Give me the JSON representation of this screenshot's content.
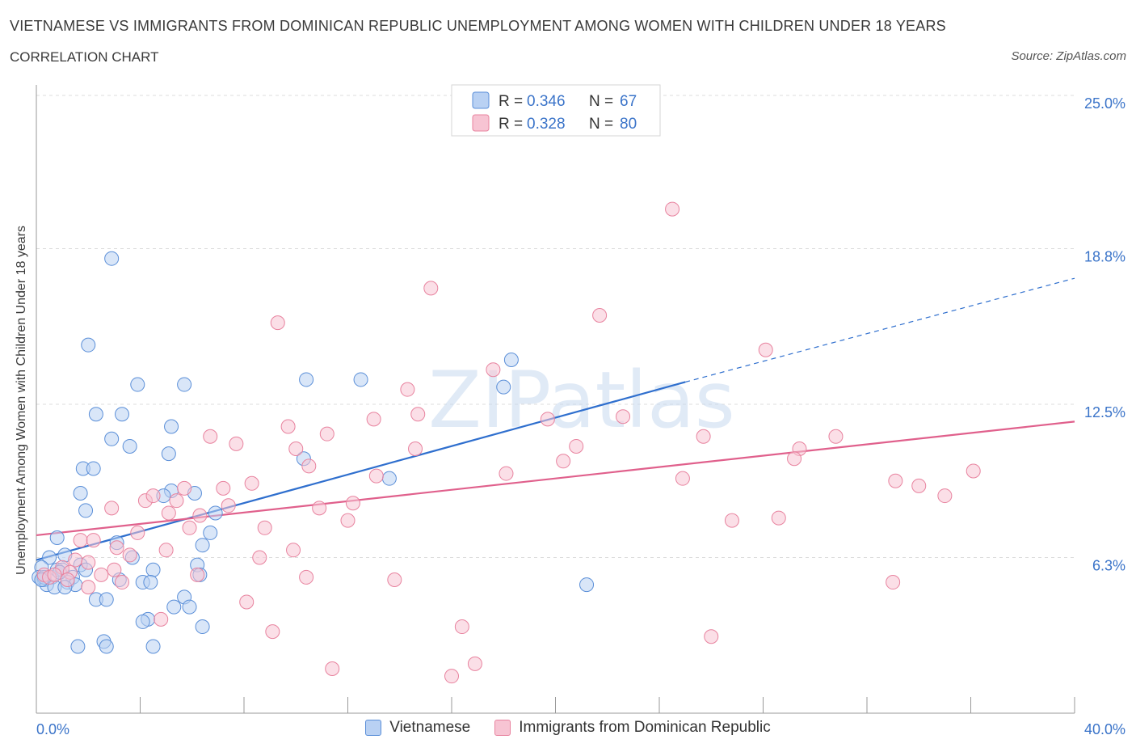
{
  "chart_data": {
    "type": "scatter",
    "title": "VIETNAMESE VS IMMIGRANTS FROM DOMINICAN REPUBLIC UNEMPLOYMENT AMONG WOMEN WITH CHILDREN UNDER 18 YEARS",
    "subtitle": "CORRELATION CHART",
    "source": "Source: ZipAtlas.com",
    "xlabel": "",
    "ylabel": "Unemployment Among Women with Children Under 18 years",
    "xlim": [
      0,
      40
    ],
    "ylim": [
      0,
      25
    ],
    "x_tick_labels": [
      "0.0%",
      "40.0%"
    ],
    "y_ticks": [
      {
        "value": 6.3,
        "label": "6.3%"
      },
      {
        "value": 12.5,
        "label": "12.5%"
      },
      {
        "value": 18.8,
        "label": "18.8%"
      },
      {
        "value": 25.0,
        "label": "25.0%"
      }
    ],
    "watermark": "ZIPatlas",
    "series": [
      {
        "name": "Vietnamese",
        "color": "#5b8fd8",
        "fill": "#b9d1f3",
        "line_color": "#2f6fce",
        "R": "0.346",
        "N": "67",
        "trend": {
          "x0": 0.0,
          "y0": 6.2,
          "x1": 25.0,
          "y1": 13.4,
          "dash_to_x": 40.0,
          "dash_to_y": 17.6
        },
        "points": [
          [
            2.9,
            18.4
          ],
          [
            2.0,
            14.9
          ],
          [
            18.3,
            14.3
          ],
          [
            3.9,
            13.3
          ],
          [
            5.7,
            13.3
          ],
          [
            10.4,
            13.5
          ],
          [
            12.5,
            13.5
          ],
          [
            18.0,
            13.2
          ],
          [
            2.3,
            12.1
          ],
          [
            3.3,
            12.1
          ],
          [
            5.2,
            11.6
          ],
          [
            2.9,
            11.1
          ],
          [
            3.6,
            10.8
          ],
          [
            5.1,
            10.5
          ],
          [
            10.3,
            10.3
          ],
          [
            1.8,
            9.9
          ],
          [
            2.2,
            9.9
          ],
          [
            13.6,
            9.5
          ],
          [
            1.7,
            8.9
          ],
          [
            5.2,
            9.0
          ],
          [
            6.1,
            8.9
          ],
          [
            4.9,
            8.8
          ],
          [
            1.9,
            8.2
          ],
          [
            6.9,
            8.1
          ],
          [
            0.8,
            7.1
          ],
          [
            6.7,
            7.3
          ],
          [
            3.1,
            6.9
          ],
          [
            6.4,
            6.8
          ],
          [
            0.5,
            6.3
          ],
          [
            1.1,
            6.4
          ],
          [
            3.7,
            6.3
          ],
          [
            1.7,
            6.0
          ],
          [
            6.2,
            6.0
          ],
          [
            0.2,
            5.9
          ],
          [
            0.3,
            5.4
          ],
          [
            0.6,
            5.5
          ],
          [
            1.4,
            5.5
          ],
          [
            1.2,
            5.3
          ],
          [
            0.8,
            5.8
          ],
          [
            1.0,
            5.8
          ],
          [
            1.9,
            5.8
          ],
          [
            4.5,
            5.8
          ],
          [
            6.3,
            5.6
          ],
          [
            0.1,
            5.5
          ],
          [
            0.4,
            5.2
          ],
          [
            0.7,
            5.1
          ],
          [
            1.5,
            5.2
          ],
          [
            1.1,
            5.1
          ],
          [
            3.2,
            5.4
          ],
          [
            4.1,
            5.3
          ],
          [
            4.4,
            5.3
          ],
          [
            2.3,
            4.6
          ],
          [
            2.7,
            4.6
          ],
          [
            5.7,
            4.7
          ],
          [
            5.3,
            4.3
          ],
          [
            5.9,
            4.3
          ],
          [
            4.3,
            3.8
          ],
          [
            4.1,
            3.7
          ],
          [
            6.4,
            3.5
          ],
          [
            2.6,
            2.9
          ],
          [
            2.7,
            2.7
          ],
          [
            1.6,
            2.7
          ],
          [
            4.5,
            2.7
          ],
          [
            21.2,
            5.2
          ],
          [
            0.3,
            5.5
          ],
          [
            0.2,
            5.4
          ],
          [
            0.9,
            5.7
          ]
        ]
      },
      {
        "name": "Immigrants from Dominican Republic",
        "color": "#e8839f",
        "fill": "#f7c4d3",
        "line_color": "#e0608c",
        "R": "0.328",
        "N": "80",
        "trend": {
          "x0": 0.0,
          "y0": 7.2,
          "x1": 40.0,
          "y1": 11.8
        },
        "points": [
          [
            24.5,
            20.4
          ],
          [
            15.2,
            17.2
          ],
          [
            21.7,
            16.1
          ],
          [
            9.3,
            15.8
          ],
          [
            28.1,
            14.7
          ],
          [
            17.6,
            13.9
          ],
          [
            14.3,
            13.1
          ],
          [
            13.0,
            11.9
          ],
          [
            14.7,
            12.1
          ],
          [
            19.7,
            11.9
          ],
          [
            22.6,
            12.0
          ],
          [
            9.7,
            11.6
          ],
          [
            11.2,
            11.3
          ],
          [
            6.7,
            11.2
          ],
          [
            7.7,
            10.9
          ],
          [
            25.7,
            11.2
          ],
          [
            29.4,
            10.7
          ],
          [
            30.8,
            11.2
          ],
          [
            14.6,
            10.7
          ],
          [
            10.0,
            10.7
          ],
          [
            20.8,
            10.8
          ],
          [
            20.3,
            10.2
          ],
          [
            29.2,
            10.3
          ],
          [
            10.5,
            10.0
          ],
          [
            18.1,
            9.7
          ],
          [
            13.1,
            9.6
          ],
          [
            33.1,
            9.4
          ],
          [
            34.0,
            9.2
          ],
          [
            36.1,
            9.8
          ],
          [
            7.2,
            9.1
          ],
          [
            8.3,
            9.3
          ],
          [
            5.7,
            9.1
          ],
          [
            24.9,
            9.5
          ],
          [
            35.0,
            8.8
          ],
          [
            4.2,
            8.6
          ],
          [
            4.5,
            8.8
          ],
          [
            5.4,
            8.6
          ],
          [
            12.2,
            8.5
          ],
          [
            10.9,
            8.3
          ],
          [
            7.4,
            8.4
          ],
          [
            2.9,
            8.3
          ],
          [
            5.1,
            8.1
          ],
          [
            6.3,
            8.0
          ],
          [
            12.0,
            7.8
          ],
          [
            26.8,
            7.8
          ],
          [
            28.6,
            7.9
          ],
          [
            5.9,
            7.5
          ],
          [
            8.8,
            7.5
          ],
          [
            3.9,
            7.3
          ],
          [
            1.7,
            7.0
          ],
          [
            2.2,
            7.0
          ],
          [
            3.1,
            6.7
          ],
          [
            5.0,
            6.6
          ],
          [
            9.9,
            6.6
          ],
          [
            3.6,
            6.4
          ],
          [
            1.5,
            6.2
          ],
          [
            8.6,
            6.3
          ],
          [
            2.0,
            6.1
          ],
          [
            1.0,
            5.9
          ],
          [
            0.3,
            5.6
          ],
          [
            0.5,
            5.5
          ],
          [
            1.3,
            5.7
          ],
          [
            2.5,
            5.6
          ],
          [
            6.2,
            5.6
          ],
          [
            10.4,
            5.5
          ],
          [
            13.8,
            5.4
          ],
          [
            33.0,
            5.3
          ],
          [
            2.0,
            5.1
          ],
          [
            3.3,
            5.3
          ],
          [
            0.7,
            5.6
          ],
          [
            8.1,
            4.5
          ],
          [
            4.8,
            3.8
          ],
          [
            16.4,
            3.5
          ],
          [
            9.1,
            3.3
          ],
          [
            26.0,
            3.1
          ],
          [
            11.4,
            1.8
          ],
          [
            16.0,
            1.5
          ],
          [
            16.9,
            2.0
          ],
          [
            3.0,
            5.8
          ],
          [
            1.2,
            5.4
          ]
        ]
      }
    ],
    "legend": {
      "r_label": "R =",
      "n_label": "N ="
    }
  }
}
